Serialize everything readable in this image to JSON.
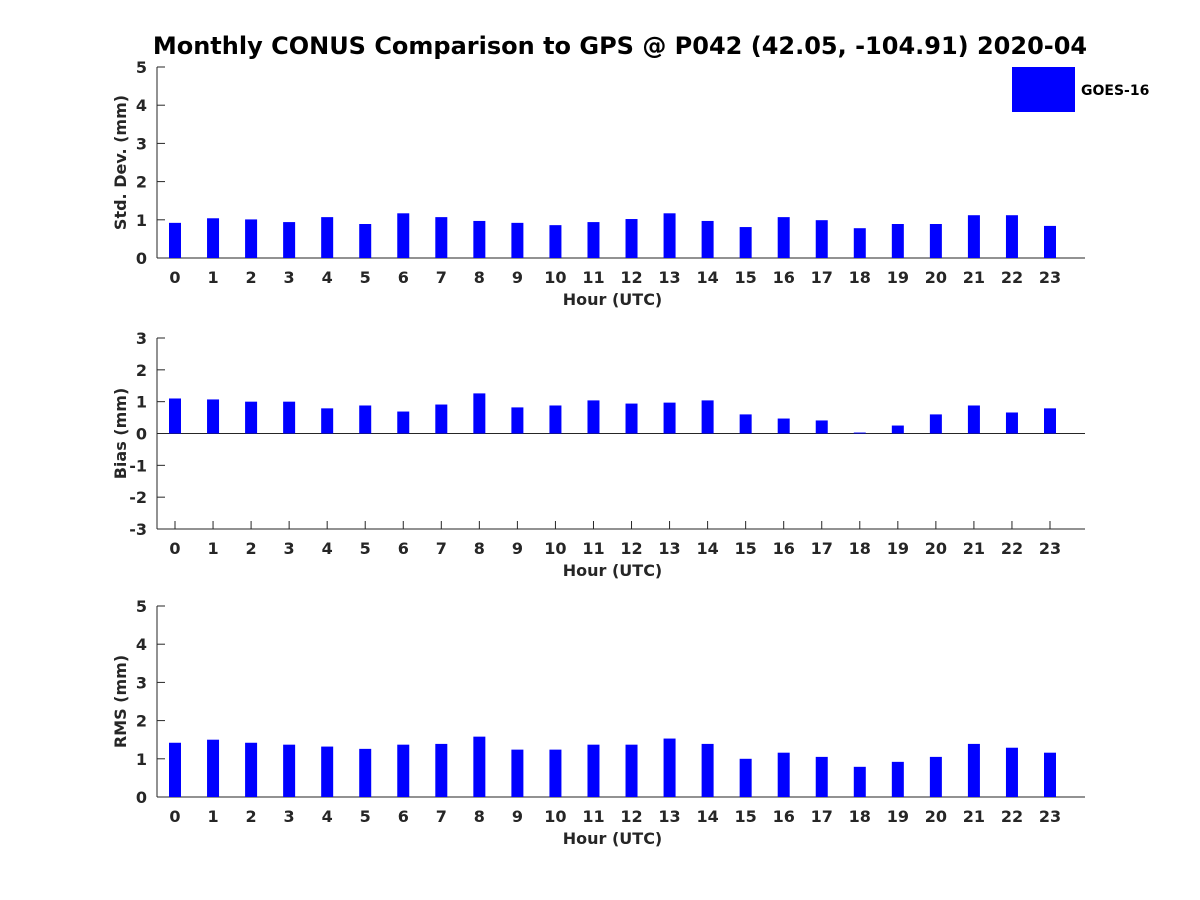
{
  "figure": {
    "title": "Monthly CONUS Comparison to GPS @ P042 (42.05, -104.91) 2020-04",
    "legend": {
      "label": "GOES-16",
      "color": "#0000ff",
      "placement": "top-right"
    }
  },
  "chart_data": [
    {
      "type": "bar",
      "ylabel": "Std. Dev. (mm)",
      "xlabel": "Hour (UTC)",
      "ylim": [
        0,
        5
      ],
      "yticks": [
        "0",
        "1",
        "2",
        "3",
        "4",
        "5"
      ],
      "categories": [
        "0",
        "1",
        "2",
        "3",
        "4",
        "5",
        "6",
        "7",
        "8",
        "9",
        "10",
        "11",
        "12",
        "13",
        "14",
        "15",
        "16",
        "17",
        "18",
        "19",
        "20",
        "21",
        "22",
        "23"
      ],
      "series": [
        {
          "name": "GOES-16",
          "color": "#0000ff",
          "values": [
            0.92,
            1.04,
            1.01,
            0.94,
            1.07,
            0.89,
            1.17,
            1.07,
            0.97,
            0.92,
            0.86,
            0.94,
            1.02,
            1.17,
            0.97,
            0.81,
            1.07,
            0.99,
            0.78,
            0.89,
            0.89,
            1.12,
            1.12,
            0.84
          ]
        }
      ]
    },
    {
      "type": "bar",
      "ylabel": "Bias (mm)",
      "xlabel": "Hour (UTC)",
      "ylim": [
        -3,
        3
      ],
      "yticks": [
        "-3",
        "-2",
        "-1",
        "0",
        "1",
        "2",
        "3"
      ],
      "categories": [
        "0",
        "1",
        "2",
        "3",
        "4",
        "5",
        "6",
        "7",
        "8",
        "9",
        "10",
        "11",
        "12",
        "13",
        "14",
        "15",
        "16",
        "17",
        "18",
        "19",
        "20",
        "21",
        "22",
        "23"
      ],
      "series": [
        {
          "name": "GOES-16",
          "color": "#0000ff",
          "values": [
            1.1,
            1.07,
            1.0,
            1.0,
            0.79,
            0.88,
            0.69,
            0.91,
            1.26,
            0.82,
            0.88,
            1.04,
            0.94,
            0.97,
            1.04,
            0.6,
            0.47,
            0.41,
            0.03,
            0.25,
            0.6,
            0.88,
            0.66,
            0.79
          ]
        }
      ]
    },
    {
      "type": "bar",
      "ylabel": "RMS (mm)",
      "xlabel": "Hour (UTC)",
      "ylim": [
        0,
        5
      ],
      "yticks": [
        "0",
        "1",
        "2",
        "3",
        "4",
        "5"
      ],
      "categories": [
        "0",
        "1",
        "2",
        "3",
        "4",
        "5",
        "6",
        "7",
        "8",
        "9",
        "10",
        "11",
        "12",
        "13",
        "14",
        "15",
        "16",
        "17",
        "18",
        "19",
        "20",
        "21",
        "22",
        "23"
      ],
      "series": [
        {
          "name": "GOES-16",
          "color": "#0000ff",
          "values": [
            1.42,
            1.5,
            1.42,
            1.37,
            1.32,
            1.26,
            1.37,
            1.39,
            1.58,
            1.24,
            1.24,
            1.37,
            1.37,
            1.53,
            1.39,
            1.0,
            1.16,
            1.05,
            0.79,
            0.92,
            1.05,
            1.39,
            1.29,
            1.16
          ]
        }
      ]
    }
  ]
}
